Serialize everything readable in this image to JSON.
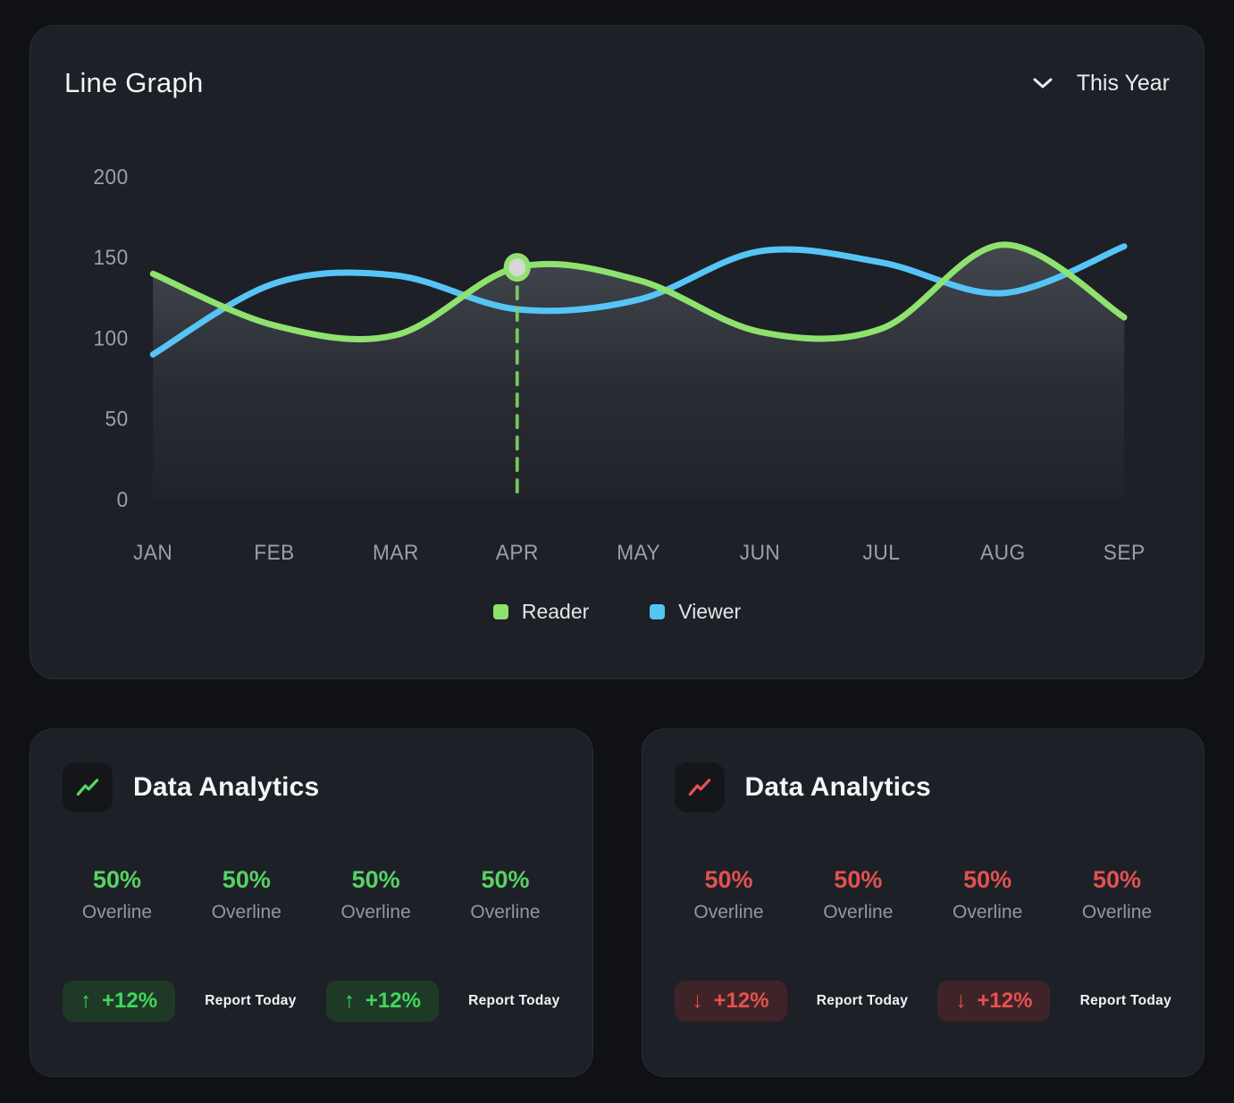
{
  "line_graph_card": {
    "title": "Line Graph",
    "period_selector": {
      "label": "This Year"
    },
    "chart_data": {
      "type": "line",
      "categories": [
        "JAN",
        "FEB",
        "MAR",
        "APR",
        "MAY",
        "JUN",
        "JUL",
        "AUG",
        "SEP"
      ],
      "series": [
        {
          "name": "Reader",
          "color": "#8fe26e",
          "values": [
            140,
            108,
            102,
            144,
            136,
            104,
            106,
            158,
            113
          ]
        },
        {
          "name": "Viewer",
          "color": "#56c5f6",
          "values": [
            90,
            134,
            139,
            118,
            124,
            154,
            147,
            128,
            157
          ]
        }
      ],
      "highlight": {
        "series": "Reader",
        "category": "APR",
        "value": 144
      },
      "yticks": [
        0,
        50,
        100,
        150,
        200
      ],
      "ylim": [
        0,
        200
      ],
      "grid": false,
      "legend_position": "bottom",
      "area_fill_under": "Reader"
    }
  },
  "analytics_cards": [
    {
      "title": "Data Analytics",
      "accent_color": "#56d364",
      "badge_bg": "#1e3a26",
      "badge_color": "#3fd75c",
      "icon": "trend-line-up-icon",
      "stats": [
        {
          "value": "50%",
          "label": "Overline"
        },
        {
          "value": "50%",
          "label": "Overline"
        },
        {
          "value": "50%",
          "label": "Overline"
        },
        {
          "value": "50%",
          "label": "Overline"
        }
      ],
      "badge1": {
        "arrow": "↑",
        "label": "+12%"
      },
      "report1": "Report Today",
      "badge2": {
        "arrow": "↑",
        "label": "+12%"
      },
      "report2": "Report Today"
    },
    {
      "title": "Data Analytics",
      "accent_color": "#e35150",
      "badge_bg": "#3e2428",
      "badge_color": "#e8514d",
      "icon": "trend-line-down-icon",
      "stats": [
        {
          "value": "50%",
          "label": "Overline"
        },
        {
          "value": "50%",
          "label": "Overline"
        },
        {
          "value": "50%",
          "label": "Overline"
        },
        {
          "value": "50%",
          "label": "Overline"
        }
      ],
      "badge1": {
        "arrow": "↓",
        "label": "+12%"
      },
      "report1": "Report Today",
      "badge2": {
        "arrow": "↓",
        "label": "+12%"
      },
      "report2": "Report Today"
    }
  ]
}
